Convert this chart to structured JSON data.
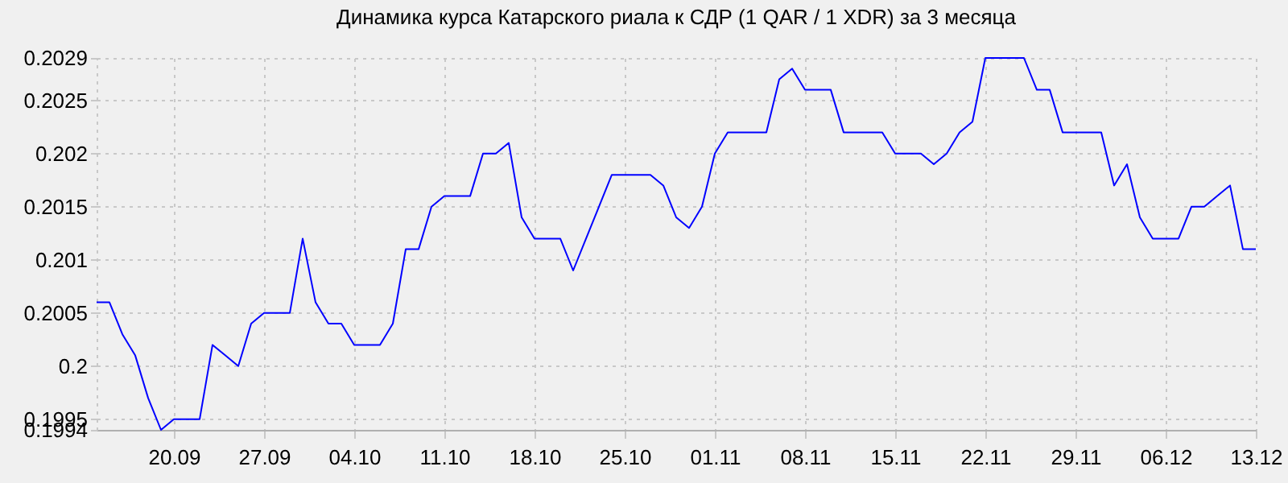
{
  "chart_data": {
    "type": "line",
    "title": "Динамика курса Катарского риала к СДР (1 QAR / 1 XDR) за 3 месяца",
    "x": [
      "--09-14",
      "--09-15",
      "--09-16",
      "--09-17",
      "--09-18",
      "--09-19",
      "--09-20",
      "--09-21",
      "--09-22",
      "--09-23",
      "--09-24",
      "--09-25",
      "--09-26",
      "--09-27",
      "--09-28",
      "--09-29",
      "--09-30",
      "--10-01",
      "--10-02",
      "--10-03",
      "--10-04",
      "--10-05",
      "--10-06",
      "--10-07",
      "--10-08",
      "--10-09",
      "--10-10",
      "--10-11",
      "--10-12",
      "--10-13",
      "--10-14",
      "--10-15",
      "--10-16",
      "--10-17",
      "--10-18",
      "--10-19",
      "--10-20",
      "--10-21",
      "--10-22",
      "--10-23",
      "--10-24",
      "--10-25",
      "--10-26",
      "--10-27",
      "--10-28",
      "--10-29",
      "--10-30",
      "--10-31",
      "--11-01",
      "--11-02",
      "--11-03",
      "--11-04",
      "--11-05",
      "--11-06",
      "--11-07",
      "--11-08",
      "--11-09",
      "--11-10",
      "--11-11",
      "--11-12",
      "--11-13",
      "--11-14",
      "--11-15",
      "--11-16",
      "--11-17",
      "--11-18",
      "--11-19",
      "--11-20",
      "--11-21",
      "--11-22",
      "--11-23",
      "--11-24",
      "--11-25",
      "--11-26",
      "--11-27",
      "--11-28",
      "--11-29",
      "--11-30",
      "--12-01",
      "--12-02",
      "--12-03",
      "--12-04",
      "--12-05",
      "--12-06",
      "--12-07",
      "--12-08",
      "--12-09",
      "--12-10",
      "--12-11",
      "--12-12",
      "--12-13"
    ],
    "series": [
      {
        "color": "#0000ff",
        "values": [
          0.2006,
          0.2006,
          0.2003,
          0.2001,
          0.1997,
          0.1994,
          0.1995,
          0.1995,
          0.1995,
          0.2002,
          0.2001,
          0.2,
          0.2004,
          0.2005,
          0.2005,
          0.2005,
          0.2012,
          0.2006,
          0.2004,
          0.2004,
          0.2002,
          0.2002,
          0.2002,
          0.2004,
          0.2011,
          0.2011,
          0.2015,
          0.2016,
          0.2016,
          0.2016,
          0.202,
          0.202,
          0.2021,
          0.2014,
          0.2012,
          0.2012,
          0.2012,
          0.2009,
          0.2012,
          0.2015,
          0.2018,
          0.2018,
          0.2018,
          0.2018,
          0.2017,
          0.2014,
          0.2013,
          0.2015,
          0.202,
          0.2022,
          0.2022,
          0.2022,
          0.2022,
          0.2027,
          0.2028,
          0.2026,
          0.2026,
          0.2026,
          0.2022,
          0.2022,
          0.2022,
          0.2022,
          0.202,
          0.202,
          0.202,
          0.2019,
          0.202,
          0.2022,
          0.2023,
          0.2029,
          0.2029,
          0.2029,
          0.2029,
          0.2026,
          0.2026,
          0.2022,
          0.2022,
          0.2022,
          0.2022,
          0.2017,
          0.2019,
          0.2014,
          0.2012,
          0.2012,
          0.2012,
          0.2015,
          0.2015,
          0.2016,
          0.2017,
          0.2011,
          0.2011
        ]
      }
    ],
    "xlim": [
      "--09-14",
      "--12-13"
    ],
    "xticks": [
      {
        "value": "--09-20",
        "label": "20.09"
      },
      {
        "value": "--09-27",
        "label": "27.09"
      },
      {
        "value": "--10-04",
        "label": "04.10"
      },
      {
        "value": "--10-11",
        "label": "11.10"
      },
      {
        "value": "--10-18",
        "label": "18.10"
      },
      {
        "value": "--10-25",
        "label": "25.10"
      },
      {
        "value": "--11-01",
        "label": "01.11"
      },
      {
        "value": "--11-08",
        "label": "08.11"
      },
      {
        "value": "--11-15",
        "label": "15.11"
      },
      {
        "value": "--11-22",
        "label": "22.11"
      },
      {
        "value": "--11-29",
        "label": "29.11"
      },
      {
        "value": "--12-06",
        "label": "06.12"
      },
      {
        "value": "--12-13",
        "label": "13.12"
      }
    ],
    "ylim": [
      0.1994,
      0.2029
    ],
    "yticks": [
      0.1994,
      0.1995,
      0.2,
      0.2005,
      0.201,
      0.2015,
      0.202,
      0.2025,
      0.2029
    ],
    "grid": true,
    "marker": "none",
    "line_style": "solid"
  }
}
